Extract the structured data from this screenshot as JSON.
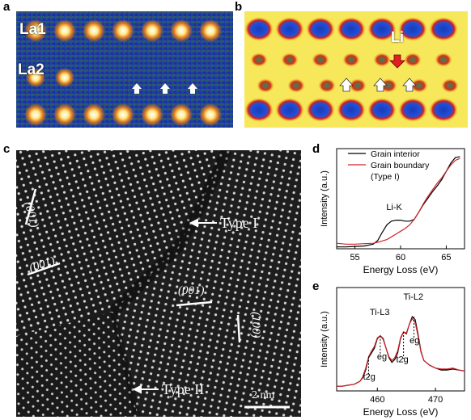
{
  "panels": {
    "a": {
      "label": "a",
      "site_labels": [
        "La1",
        "La2"
      ]
    },
    "b": {
      "label": "b",
      "site_label": "Li"
    },
    "c": {
      "label": "c",
      "annotations": {
        "type1": "Type I",
        "type2": "Type II",
        "scale": "2 nm",
        "plane_left_top": "(001)",
        "plane_left_mid": "(001)",
        "plane_center": "(001)",
        "plane_right": "(100)"
      }
    },
    "d": {
      "label": "d"
    },
    "e": {
      "label": "e"
    }
  },
  "chart_data": [
    {
      "panel": "d",
      "type": "line",
      "xlabel": "Energy Loss (eV)",
      "ylabel": "Intensity (a.u.)",
      "xlim": [
        53,
        67
      ],
      "xticks": [
        55,
        60,
        65
      ],
      "annotation": "Li-K",
      "legend": {
        "placement": "top-left",
        "entries": [
          "Grain interior",
          "Grain boundary",
          "(Type I)"
        ]
      },
      "series": [
        {
          "name": "Grain interior",
          "color": "#000000",
          "x": [
            53,
            54,
            55,
            56,
            57,
            57.5,
            58,
            58.5,
            59,
            59.5,
            60,
            60.5,
            61,
            61.5,
            62,
            62.5,
            63,
            63.5,
            64,
            64.5,
            65,
            65.5,
            66,
            66.5
          ],
          "y": [
            0.02,
            0.02,
            0.025,
            0.03,
            0.05,
            0.09,
            0.18,
            0.26,
            0.3,
            0.31,
            0.31,
            0.3,
            0.3,
            0.32,
            0.4,
            0.48,
            0.55,
            0.62,
            0.68,
            0.75,
            0.84,
            0.93,
            0.99,
            1.0
          ]
        },
        {
          "name": "Grain boundary (Type I)",
          "color": "#d2232a",
          "x": [
            53,
            54,
            55,
            56,
            57,
            57.5,
            58,
            58.5,
            59,
            59.5,
            60,
            60.5,
            61,
            61.5,
            62,
            62.5,
            63,
            63.5,
            64,
            64.5,
            65,
            65.5,
            66,
            66.5
          ],
          "y": [
            0.06,
            0.05,
            0.05,
            0.055,
            0.06,
            0.07,
            0.085,
            0.1,
            0.13,
            0.16,
            0.19,
            0.22,
            0.26,
            0.32,
            0.4,
            0.49,
            0.57,
            0.64,
            0.71,
            0.77,
            0.84,
            0.91,
            0.96,
            0.98
          ]
        }
      ]
    },
    {
      "panel": "e",
      "type": "line",
      "xlabel": "Energy Loss (eV)",
      "ylabel": "Intensity (a.u.)",
      "xlim": [
        453,
        475
      ],
      "xticks": [
        460,
        470
      ],
      "annotations": {
        "l3": "Ti-L3",
        "l2": "Ti-L2",
        "t2g": "t2g",
        "eg": "eg"
      },
      "series": [
        {
          "name": "Grain interior",
          "color": "#000000",
          "x": [
            453,
            454,
            455,
            456,
            457,
            457.5,
            458,
            458.5,
            459,
            459.5,
            460,
            460.5,
            461,
            461.5,
            462,
            462.5,
            463,
            463.5,
            464,
            464.5,
            465,
            465.5,
            466,
            466.5,
            467,
            467.5,
            468,
            469,
            470,
            471,
            472,
            473,
            474,
            475
          ],
          "y": [
            0.05,
            0.05,
            0.06,
            0.07,
            0.1,
            0.14,
            0.22,
            0.35,
            0.4,
            0.45,
            0.55,
            0.58,
            0.55,
            0.45,
            0.35,
            0.3,
            0.33,
            0.4,
            0.55,
            0.62,
            0.6,
            0.7,
            0.78,
            0.75,
            0.6,
            0.42,
            0.32,
            0.27,
            0.24,
            0.22,
            0.22,
            0.23,
            0.22,
            0.21
          ]
        },
        {
          "name": "Grain boundary",
          "color": "#d2232a",
          "x": [
            453,
            454,
            455,
            456,
            457,
            457.5,
            458,
            458.5,
            459,
            459.5,
            460,
            460.5,
            461,
            461.5,
            462,
            462.5,
            463,
            463.5,
            464,
            464.5,
            465,
            465.5,
            466,
            466.5,
            467,
            467.5,
            468,
            469,
            470,
            471,
            472,
            473,
            474,
            475
          ],
          "y": [
            0.05,
            0.05,
            0.06,
            0.07,
            0.1,
            0.15,
            0.24,
            0.36,
            0.42,
            0.47,
            0.56,
            0.58,
            0.54,
            0.45,
            0.36,
            0.32,
            0.35,
            0.42,
            0.56,
            0.62,
            0.61,
            0.7,
            0.76,
            0.72,
            0.58,
            0.41,
            0.32,
            0.27,
            0.24,
            0.23,
            0.23,
            0.24,
            0.22,
            0.21
          ]
        }
      ]
    }
  ]
}
